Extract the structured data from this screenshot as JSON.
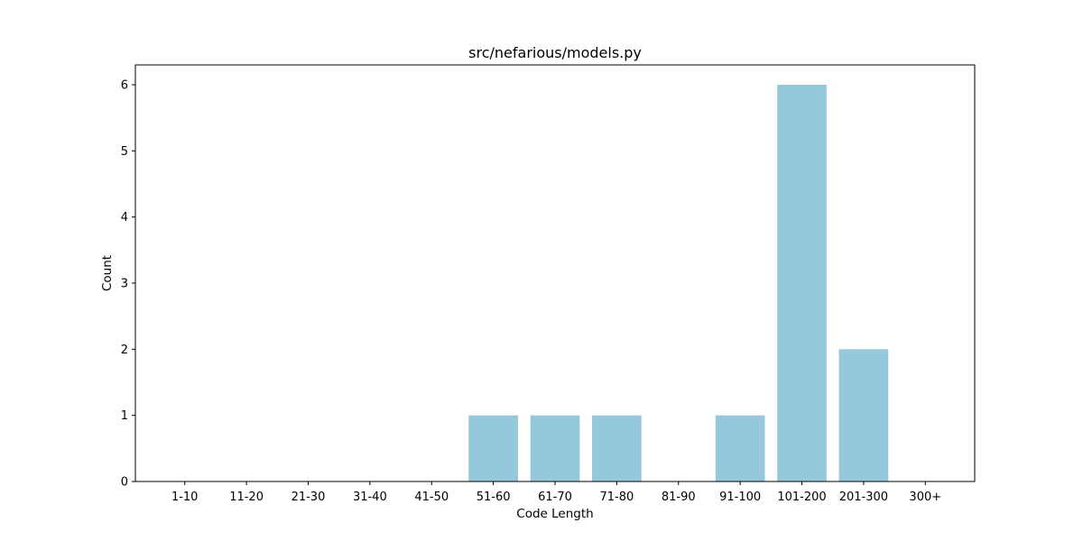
{
  "chart_data": {
    "type": "bar",
    "title": "src/nefarious/models.py",
    "xlabel": "Code Length",
    "ylabel": "Count",
    "categories": [
      "1-10",
      "11-20",
      "21-30",
      "31-40",
      "41-50",
      "51-60",
      "61-70",
      "71-80",
      "81-90",
      "91-100",
      "101-200",
      "201-300",
      "300+"
    ],
    "values": [
      0,
      0,
      0,
      0,
      0,
      1,
      1,
      1,
      0,
      1,
      6,
      2,
      0
    ],
    "ylim": [
      0,
      6.3
    ],
    "yticks": [
      0,
      1,
      2,
      3,
      4,
      5,
      6
    ],
    "grid": false,
    "legend": "none",
    "colors": {
      "bar": "#96c8dc",
      "axis": "#000000",
      "background": "#ffffff"
    }
  }
}
